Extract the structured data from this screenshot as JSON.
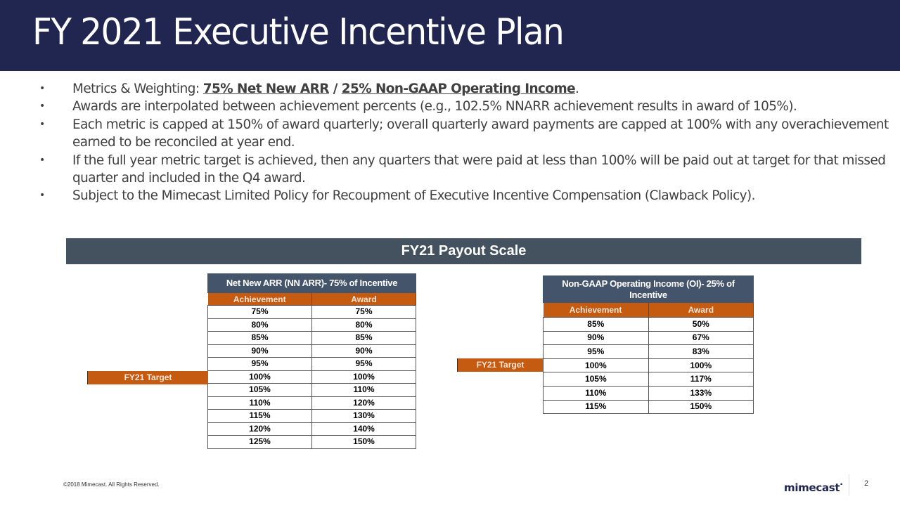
{
  "slide": {
    "title": "FY 2021 Executive Incentive Plan",
    "bullets": [
      {
        "prefix": "Metrics & Weighting: ",
        "link1": "75% Net New ARR",
        "sep": " / ",
        "link2": "25% Non-GAAP Operating Income",
        "suffix": "."
      },
      {
        "text": "Awards are interpolated between achievement percents (e.g., 102.5% NNARR achievement results in award of 105%)."
      },
      {
        "text": "Each metric is capped at 150% of award quarterly; overall quarterly award payments are capped at 100% with any overachievement earned to be reconciled at year end."
      },
      {
        "text": "If the full year metric target is achieved, then any quarters that were paid at less than 100% will be paid out at target for that missed quarter and included in the Q4 award."
      },
      {
        "text": "Subject to the Mimecast Limited Policy for Recoupment of Executive Incentive Compensation (Clawback Policy)."
      }
    ],
    "bullet_glyph": "•",
    "section_title": "FY21 Payout Scale",
    "tables": {
      "nnarr": {
        "title": "Net New ARR (NN ARR)- 75% of Incentive",
        "columns": [
          "Achievement",
          "Award"
        ],
        "target_label": "FY21 Target",
        "rows": [
          [
            "75%",
            "75%"
          ],
          [
            "80%",
            "80%"
          ],
          [
            "85%",
            "85%"
          ],
          [
            "90%",
            "90%"
          ],
          [
            "95%",
            "95%"
          ],
          [
            "100%",
            "100%"
          ],
          [
            "105%",
            "110%"
          ],
          [
            "110%",
            "120%"
          ],
          [
            "115%",
            "130%"
          ],
          [
            "120%",
            "140%"
          ],
          [
            "125%",
            "150%"
          ]
        ]
      },
      "oi": {
        "title": "Non-GAAP Operating Income (OI)- 25% of Incentive",
        "columns": [
          "Achievement",
          "Award"
        ],
        "target_label": "FY21 Target",
        "rows": [
          [
            "85%",
            "50%"
          ],
          [
            "90%",
            "67%"
          ],
          [
            "95%",
            "83%"
          ],
          [
            "100%",
            "100%"
          ],
          [
            "105%",
            "117%"
          ],
          [
            "110%",
            "133%"
          ],
          [
            "115%",
            "150%"
          ]
        ]
      }
    },
    "footer": {
      "copyright": "©2018 Mimecast. All Rights Reserved.",
      "logo": "mimecast",
      "logo_mark": "·",
      "page_number": "2"
    },
    "colors": {
      "title_bar": "#212651",
      "section_bar": "#44515f",
      "table_header": "#44546a",
      "accent_orange": "#c55a11"
    }
  }
}
